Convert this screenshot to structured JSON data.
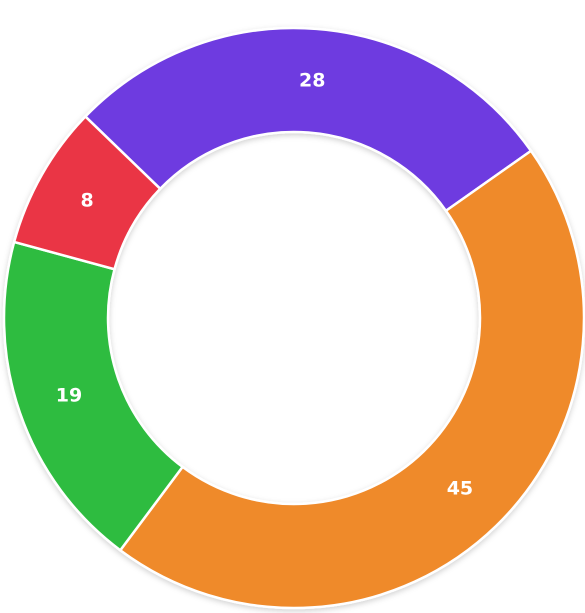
{
  "chart_data": {
    "type": "donut",
    "values": [
      28,
      45,
      19,
      8
    ],
    "colors": [
      "#6e3be0",
      "#ef8a2c",
      "#2fbc3f",
      "#ea3545"
    ]
  }
}
